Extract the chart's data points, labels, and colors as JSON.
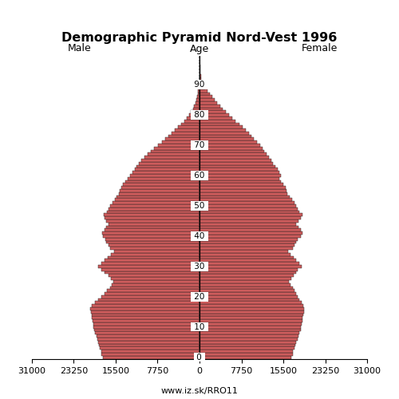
{
  "title": "Demographic Pyramid Nord-Vest 1996",
  "male_label": "Male",
  "female_label": "Female",
  "age_label": "Age",
  "source": "www.iz.sk/RRO11",
  "xlim": 31000,
  "bar_color": "#cd5c5c",
  "bar_edge_color": "#1a1a1a",
  "ages": [
    0,
    1,
    2,
    3,
    4,
    5,
    6,
    7,
    8,
    9,
    10,
    11,
    12,
    13,
    14,
    15,
    16,
    17,
    18,
    19,
    20,
    21,
    22,
    23,
    24,
    25,
    26,
    27,
    28,
    29,
    30,
    31,
    32,
    33,
    34,
    35,
    36,
    37,
    38,
    39,
    40,
    41,
    42,
    43,
    44,
    45,
    46,
    47,
    48,
    49,
    50,
    51,
    52,
    53,
    54,
    55,
    56,
    57,
    58,
    59,
    60,
    61,
    62,
    63,
    64,
    65,
    66,
    67,
    68,
    69,
    70,
    71,
    72,
    73,
    74,
    75,
    76,
    77,
    78,
    79,
    80,
    81,
    82,
    83,
    84,
    85,
    86,
    87,
    88,
    89,
    90,
    91,
    92,
    93,
    94,
    95,
    96,
    97,
    98,
    99
  ],
  "male": [
    17800,
    18100,
    18200,
    18400,
    18600,
    18700,
    18900,
    19100,
    19300,
    19500,
    19600,
    19700,
    19800,
    19900,
    20000,
    20100,
    20200,
    19900,
    19400,
    18800,
    18200,
    17600,
    17100,
    16600,
    16200,
    15900,
    16400,
    16900,
    17500,
    18100,
    18800,
    18200,
    17600,
    17000,
    16400,
    15800,
    16600,
    16900,
    17200,
    17400,
    17800,
    18000,
    17600,
    17200,
    16800,
    17200,
    17500,
    17700,
    17100,
    16800,
    16500,
    16100,
    15700,
    15300,
    14900,
    14700,
    14500,
    14100,
    13700,
    13300,
    12800,
    12400,
    12000,
    11600,
    11200,
    10800,
    10200,
    9600,
    9000,
    8400,
    7700,
    7000,
    6400,
    5800,
    5200,
    4600,
    4000,
    3400,
    2800,
    2300,
    1900,
    1550,
    1250,
    1000,
    800,
    620,
    460,
    330,
    230,
    150,
    95,
    60,
    37,
    22,
    14,
    9,
    6,
    4,
    2,
    1
  ],
  "female": [
    17000,
    17200,
    17300,
    17500,
    17700,
    17900,
    18100,
    18300,
    18500,
    18700,
    18800,
    18900,
    19000,
    19100,
    19200,
    19300,
    19400,
    19200,
    18900,
    18500,
    18200,
    17800,
    17500,
    17200,
    16900,
    16600,
    17000,
    17400,
    17800,
    18200,
    18900,
    18400,
    17900,
    17400,
    16900,
    16400,
    17300,
    17600,
    17900,
    18100,
    18700,
    19100,
    18700,
    18300,
    17900,
    18300,
    18700,
    19000,
    18400,
    18100,
    17800,
    17500,
    17100,
    16700,
    16300,
    16100,
    15900,
    15500,
    15100,
    14700,
    15000,
    14800,
    14400,
    14000,
    13600,
    13300,
    12900,
    12400,
    12000,
    11600,
    11200,
    10600,
    10100,
    9600,
    9100,
    8600,
    8000,
    7400,
    6600,
    6000,
    5400,
    4900,
    4300,
    3800,
    3300,
    2800,
    2300,
    1900,
    1450,
    1050,
    750,
    510,
    350,
    240,
    165,
    115,
    78,
    52,
    34,
    22
  ]
}
